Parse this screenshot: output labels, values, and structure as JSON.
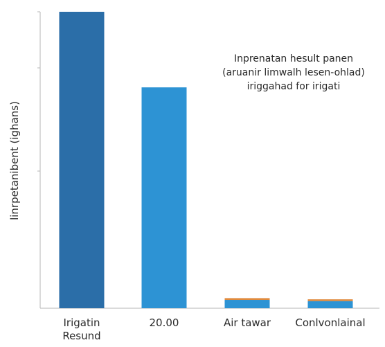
{
  "chart_data": {
    "type": "bar",
    "categories": [
      "Irigatin Resund",
      "20.00",
      "Air tawar",
      "Conlvonlainal"
    ],
    "category_lines": [
      [
        "Irigatin",
        "Resund"
      ],
      [
        "20.00"
      ],
      [
        "Air tawar"
      ],
      [
        "Conlvonlainal"
      ]
    ],
    "values": [
      100,
      74.5,
      2.8,
      2.4
    ],
    "accent_values": [
      0,
      0,
      0.6,
      0.6
    ],
    "bar_colors": [
      "#2b6ea8",
      "#2d93d4",
      "#2d93d4",
      "#2d93d4"
    ],
    "accent_color": "#e08a3c",
    "axis_color": "#b5b5b5",
    "ylabel": "linrpetanibent (ighans)",
    "ylim": [
      0,
      100
    ],
    "grid": false,
    "legend": null,
    "annotation": [
      "Inprenatan hesult panen",
      "(aruanir limwalh lesen-ohlad)",
      "iriggahad for irigati"
    ]
  }
}
